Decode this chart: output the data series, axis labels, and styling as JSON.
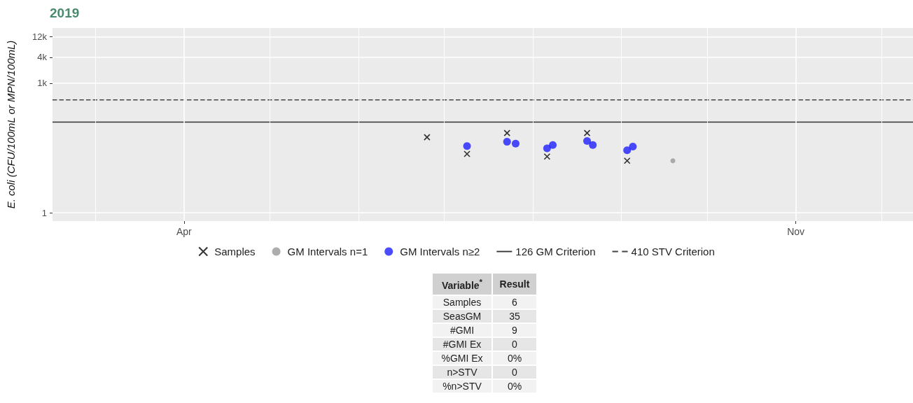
{
  "chart_data": {
    "type": "scatter",
    "title": "2019",
    "ylabel": "E. coli (CFU/100mL or MPN/100mL)",
    "xlim": [
      "2019-02-14",
      "2019-12-12"
    ],
    "xticks": [
      {
        "value": "2019-03-01",
        "label": null
      },
      {
        "value": "2019-04-01",
        "label": "Apr"
      },
      {
        "value": "2019-05-01",
        "label": null
      },
      {
        "value": "2019-06-01",
        "label": null
      },
      {
        "value": "2019-07-01",
        "label": null
      },
      {
        "value": "2019-08-01",
        "label": null
      },
      {
        "value": "2019-09-01",
        "label": null
      },
      {
        "value": "2019-10-01",
        "label": null
      },
      {
        "value": "2019-11-01",
        "label": "Nov"
      },
      {
        "value": "2019-12-01",
        "label": null
      }
    ],
    "ylim": [
      0.64,
      19000
    ],
    "yticks": [
      1,
      {
        "value": 1000,
        "label": "1k"
      },
      {
        "value": 4000,
        "label": "4k"
      },
      {
        "value": 12000,
        "label": "12k"
      }
    ],
    "log": "y",
    "grid": true,
    "legend": "bottom",
    "series": [
      {
        "name": "Samples",
        "marker": "cross",
        "color": "#000000",
        "x": [
          "2019-06-25",
          "2019-07-09",
          "2019-07-23",
          "2019-08-06",
          "2019-08-20",
          "2019-09-03"
        ],
        "values": [
          56,
          23,
          70,
          20,
          70,
          16
        ]
      },
      {
        "name": "GM Intervals n=1",
        "marker": "circle",
        "color": "#999999",
        "x": [
          "2019-09-19"
        ],
        "values": [
          16
        ]
      },
      {
        "name": "GM Intervals n≥2",
        "marker": "circle",
        "color": "#1f1fff",
        "x": [
          "2019-07-09",
          "2019-07-23",
          "2019-07-26",
          "2019-08-06",
          "2019-08-08",
          "2019-08-20",
          "2019-08-22",
          "2019-09-03",
          "2019-09-05"
        ],
        "values": [
          35,
          44,
          40,
          31,
          37,
          46,
          37,
          28,
          34
        ]
      }
    ],
    "ref_lines": [
      {
        "axis": "y",
        "value": 126,
        "label": "126 GM Criterion",
        "color": "#333333",
        "line_style": "solid"
      },
      {
        "axis": "y",
        "value": 410,
        "label": "410 STV Criterion",
        "color": "#444444",
        "line_style": "dashed"
      }
    ],
    "annotations": [
      "Variable$^{*}$",
      "Result",
      "Samples",
      "6",
      "SeasGM",
      "35",
      "#GMI",
      "9",
      "#GMI Ex",
      "0",
      "%GMI Ex",
      "0%",
      "n>STV",
      "0",
      "%n>STV",
      "0%"
    ]
  }
}
